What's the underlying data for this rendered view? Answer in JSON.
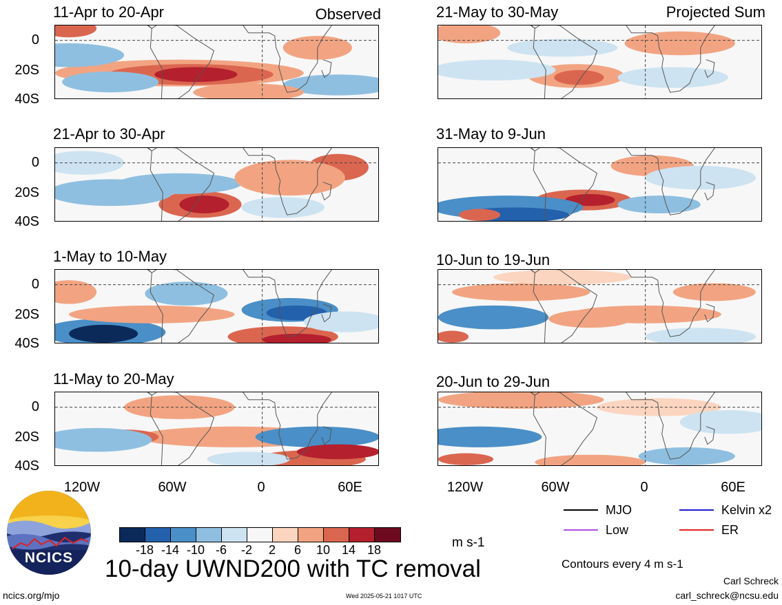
{
  "panels": [
    {
      "title": "11-Apr to 20-Apr",
      "corner": "Observed"
    },
    {
      "title": "21-Apr to 30-Apr",
      "corner": ""
    },
    {
      "title": "1-May to 10-May",
      "corner": ""
    },
    {
      "title": "11-May to 20-May",
      "corner": ""
    },
    {
      "title": "21-May to 30-May",
      "corner": "Projected Sum"
    },
    {
      "title": "31-May to 9-Jun",
      "corner": ""
    },
    {
      "title": "10-Jun to 19-Jun",
      "corner": ""
    },
    {
      "title": "20-Jun to 29-Jun",
      "corner": ""
    }
  ],
  "lat_labels": [
    "0",
    "20S",
    "40S"
  ],
  "lon_labels": [
    "120W",
    "60W",
    "0",
    "60E"
  ],
  "colorbar": {
    "colors": [
      "#0b2a5a",
      "#2361ac",
      "#4a8fc7",
      "#8fbfe0",
      "#cde3f1",
      "#f7f7f7",
      "#fbd5c0",
      "#f2a482",
      "#db6650",
      "#b4202d",
      "#6d0a1f"
    ],
    "ticks": [
      "-18",
      "-14",
      "-10",
      "-6",
      "-2",
      "2",
      "6",
      "10",
      "14",
      "18"
    ],
    "units": "m s-1"
  },
  "main_title": "10-day UWND200 with TC removal",
  "legend": [
    {
      "label": "MJO",
      "color": "#000000"
    },
    {
      "label": "Kelvin x2",
      "color": "#1a1ad0"
    },
    {
      "label": "Low",
      "color": "#b04be0"
    },
    {
      "label": "ER",
      "color": "#e02020"
    }
  ],
  "contours_note": "Contours every 4 m s-1",
  "logo_text": "NCICS",
  "footer": {
    "left": "ncics.org/mjo",
    "center": "Wed 2025-05-21 1017 UTC",
    "author": "Carl Schreck",
    "email": "carl_schreck@ncsu.edu"
  }
}
